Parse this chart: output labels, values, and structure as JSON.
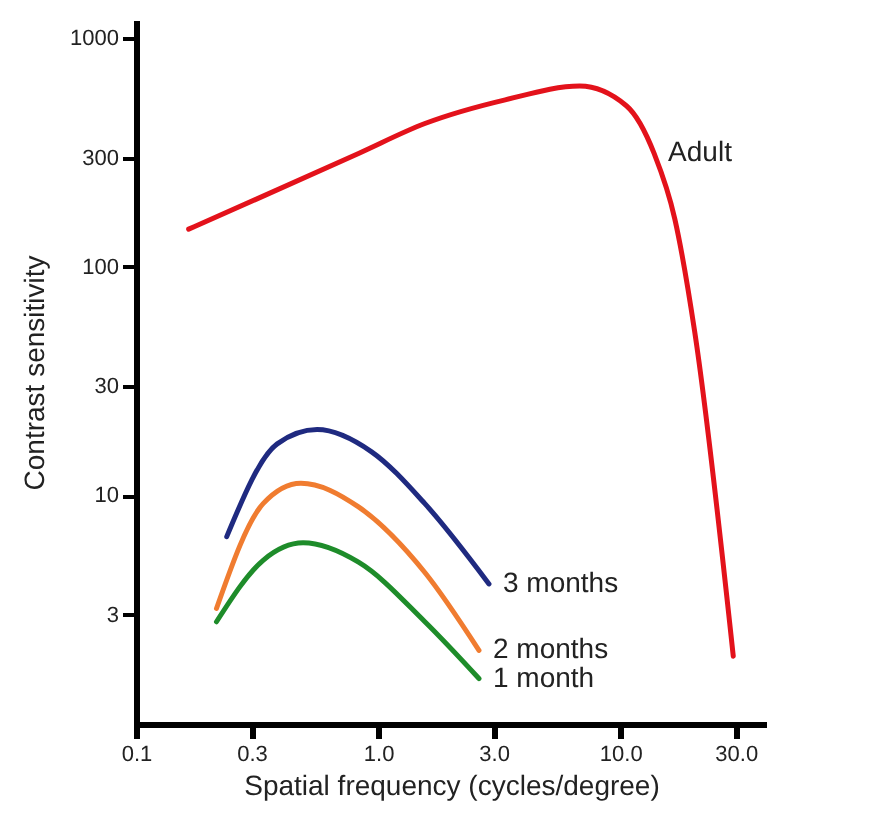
{
  "chart_data": {
    "type": "line",
    "xlabel": "Spatial frequency (cycles/degree)",
    "ylabel": "Contrast sensitivity",
    "log": "xy",
    "grid": false,
    "legend": false,
    "marker": "none",
    "line_style": "solid",
    "xlim": [
      0.1,
      40
    ],
    "ylim": [
      1,
      1200
    ],
    "xticks": [
      0.1,
      0.3,
      {
        "value": 1,
        "label": "1.0"
      },
      {
        "value": 3,
        "label": "3.0"
      },
      {
        "value": 10,
        "label": "10.0"
      },
      {
        "value": 30,
        "label": "30.0"
      }
    ],
    "yticks": [
      3,
      10,
      30,
      100,
      300,
      1000
    ],
    "series": [
      {
        "name": "Adult",
        "color": "#e3121b",
        "x": [
          0.165,
          0.316,
          0.83,
          1.56,
          3.35,
          6.8,
          10.6,
          13.8,
          16.8,
          20.3,
          29.3
        ],
        "values": [
          146,
          198,
          313,
          423,
          537,
          617,
          506,
          313,
          162,
          52,
          1.98
        ]
      },
      {
        "name": "3 months",
        "color": "#1f2a80",
        "x": [
          0.237,
          0.383,
          0.56,
          0.94,
          1.56,
          2.87
        ],
        "values": [
          6.6,
          16.8,
          19.4,
          15.5,
          9.2,
          4.1
        ]
      },
      {
        "name": "2 months",
        "color": "#f07c30",
        "x": [
          0.215,
          0.335,
          0.48,
          0.83,
          1.56,
          2.61
        ],
        "values": [
          3.2,
          9.2,
          11.3,
          8.9,
          4.6,
          2.1
        ]
      },
      {
        "name": "1 month",
        "color": "#1e8c2a",
        "x": [
          0.215,
          0.335,
          0.49,
          0.83,
          1.56,
          2.61
        ],
        "values": [
          2.8,
          5.2,
          6.2,
          5.1,
          2.8,
          1.58
        ]
      }
    ]
  }
}
